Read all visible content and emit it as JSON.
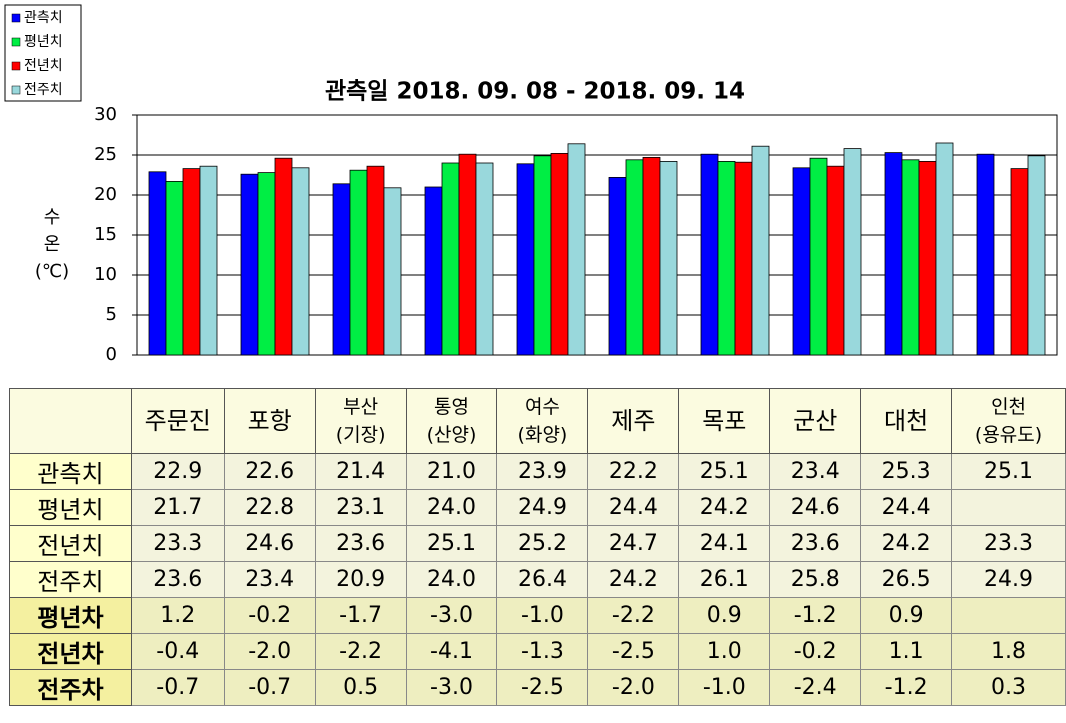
{
  "chart_data": {
    "type": "bar",
    "title": "관측일 2018. 09. 08 - 2018. 09. 14",
    "ylabel": [
      "수",
      "온",
      "(℃)"
    ],
    "categories": [
      "주문진",
      "포항",
      "부산\n(기장)",
      "통영\n(산양)",
      "여수\n(화양)",
      "제주",
      "목포",
      "군산",
      "대천",
      "인천\n(용유도)"
    ],
    "series": [
      {
        "name": "관측치",
        "color": "#0000ff",
        "values": [
          22.9,
          22.6,
          21.4,
          21.0,
          23.9,
          22.2,
          25.1,
          23.4,
          25.3,
          25.1
        ],
        "value_labels": [
          "22.9",
          "22.6",
          "21.4",
          "21.0",
          "23.9",
          "22.2",
          "25.1",
          "23.4",
          "25.3",
          "25.1"
        ]
      },
      {
        "name": "평년치",
        "color": "#00ee44",
        "values": [
          21.7,
          22.8,
          23.1,
          24.0,
          24.9,
          24.4,
          24.2,
          24.6,
          24.4,
          null
        ],
        "value_labels": [
          "21.7",
          "22.8",
          "23.1",
          "24.0",
          "24.9",
          "24.4",
          "24.2",
          "24.6",
          "24.4",
          null
        ]
      },
      {
        "name": "전년치",
        "color": "#ff0000",
        "values": [
          23.3,
          24.6,
          23.6,
          25.1,
          25.2,
          24.7,
          24.1,
          23.6,
          24.2,
          23.3
        ],
        "value_labels": [
          "23.3",
          "24.6",
          "23.6",
          "25.1",
          "25.2",
          "24.7",
          "24.1",
          "23.6",
          "24.2",
          "23.3"
        ]
      },
      {
        "name": "전주치",
        "color": "#99d8dc",
        "values": [
          23.6,
          23.4,
          20.9,
          24.0,
          26.4,
          24.2,
          26.1,
          25.8,
          26.5,
          24.9
        ],
        "value_labels": [
          "23.6",
          "23.4",
          "20.9",
          "24.0",
          "26.4",
          "24.2",
          "26.1",
          "25.8",
          "26.5",
          "24.9"
        ]
      }
    ],
    "ylim": [
      0,
      30
    ],
    "yticks": [
      0,
      5,
      10,
      15,
      20,
      25,
      30
    ],
    "grid": true,
    "legend": "top-left"
  },
  "table": {
    "rows": [
      {
        "name": "평년차",
        "values": [
          "1.2",
          "-0.2",
          "-1.7",
          "-3.0",
          "-1.0",
          "-2.2",
          "0.9",
          "-1.2",
          "0.9",
          null
        ]
      },
      {
        "name": "전년차",
        "values": [
          "-0.4",
          "-2.0",
          "-2.2",
          "-4.1",
          "-1.3",
          "-2.5",
          "1.0",
          "-0.2",
          "1.1",
          "1.8"
        ]
      },
      {
        "name": "전주차",
        "values": [
          "-0.7",
          "-0.7",
          "0.5",
          "-3.0",
          "-2.5",
          "-2.0",
          "-1.0",
          "-2.4",
          "-1.2",
          "0.3"
        ]
      }
    ]
  }
}
